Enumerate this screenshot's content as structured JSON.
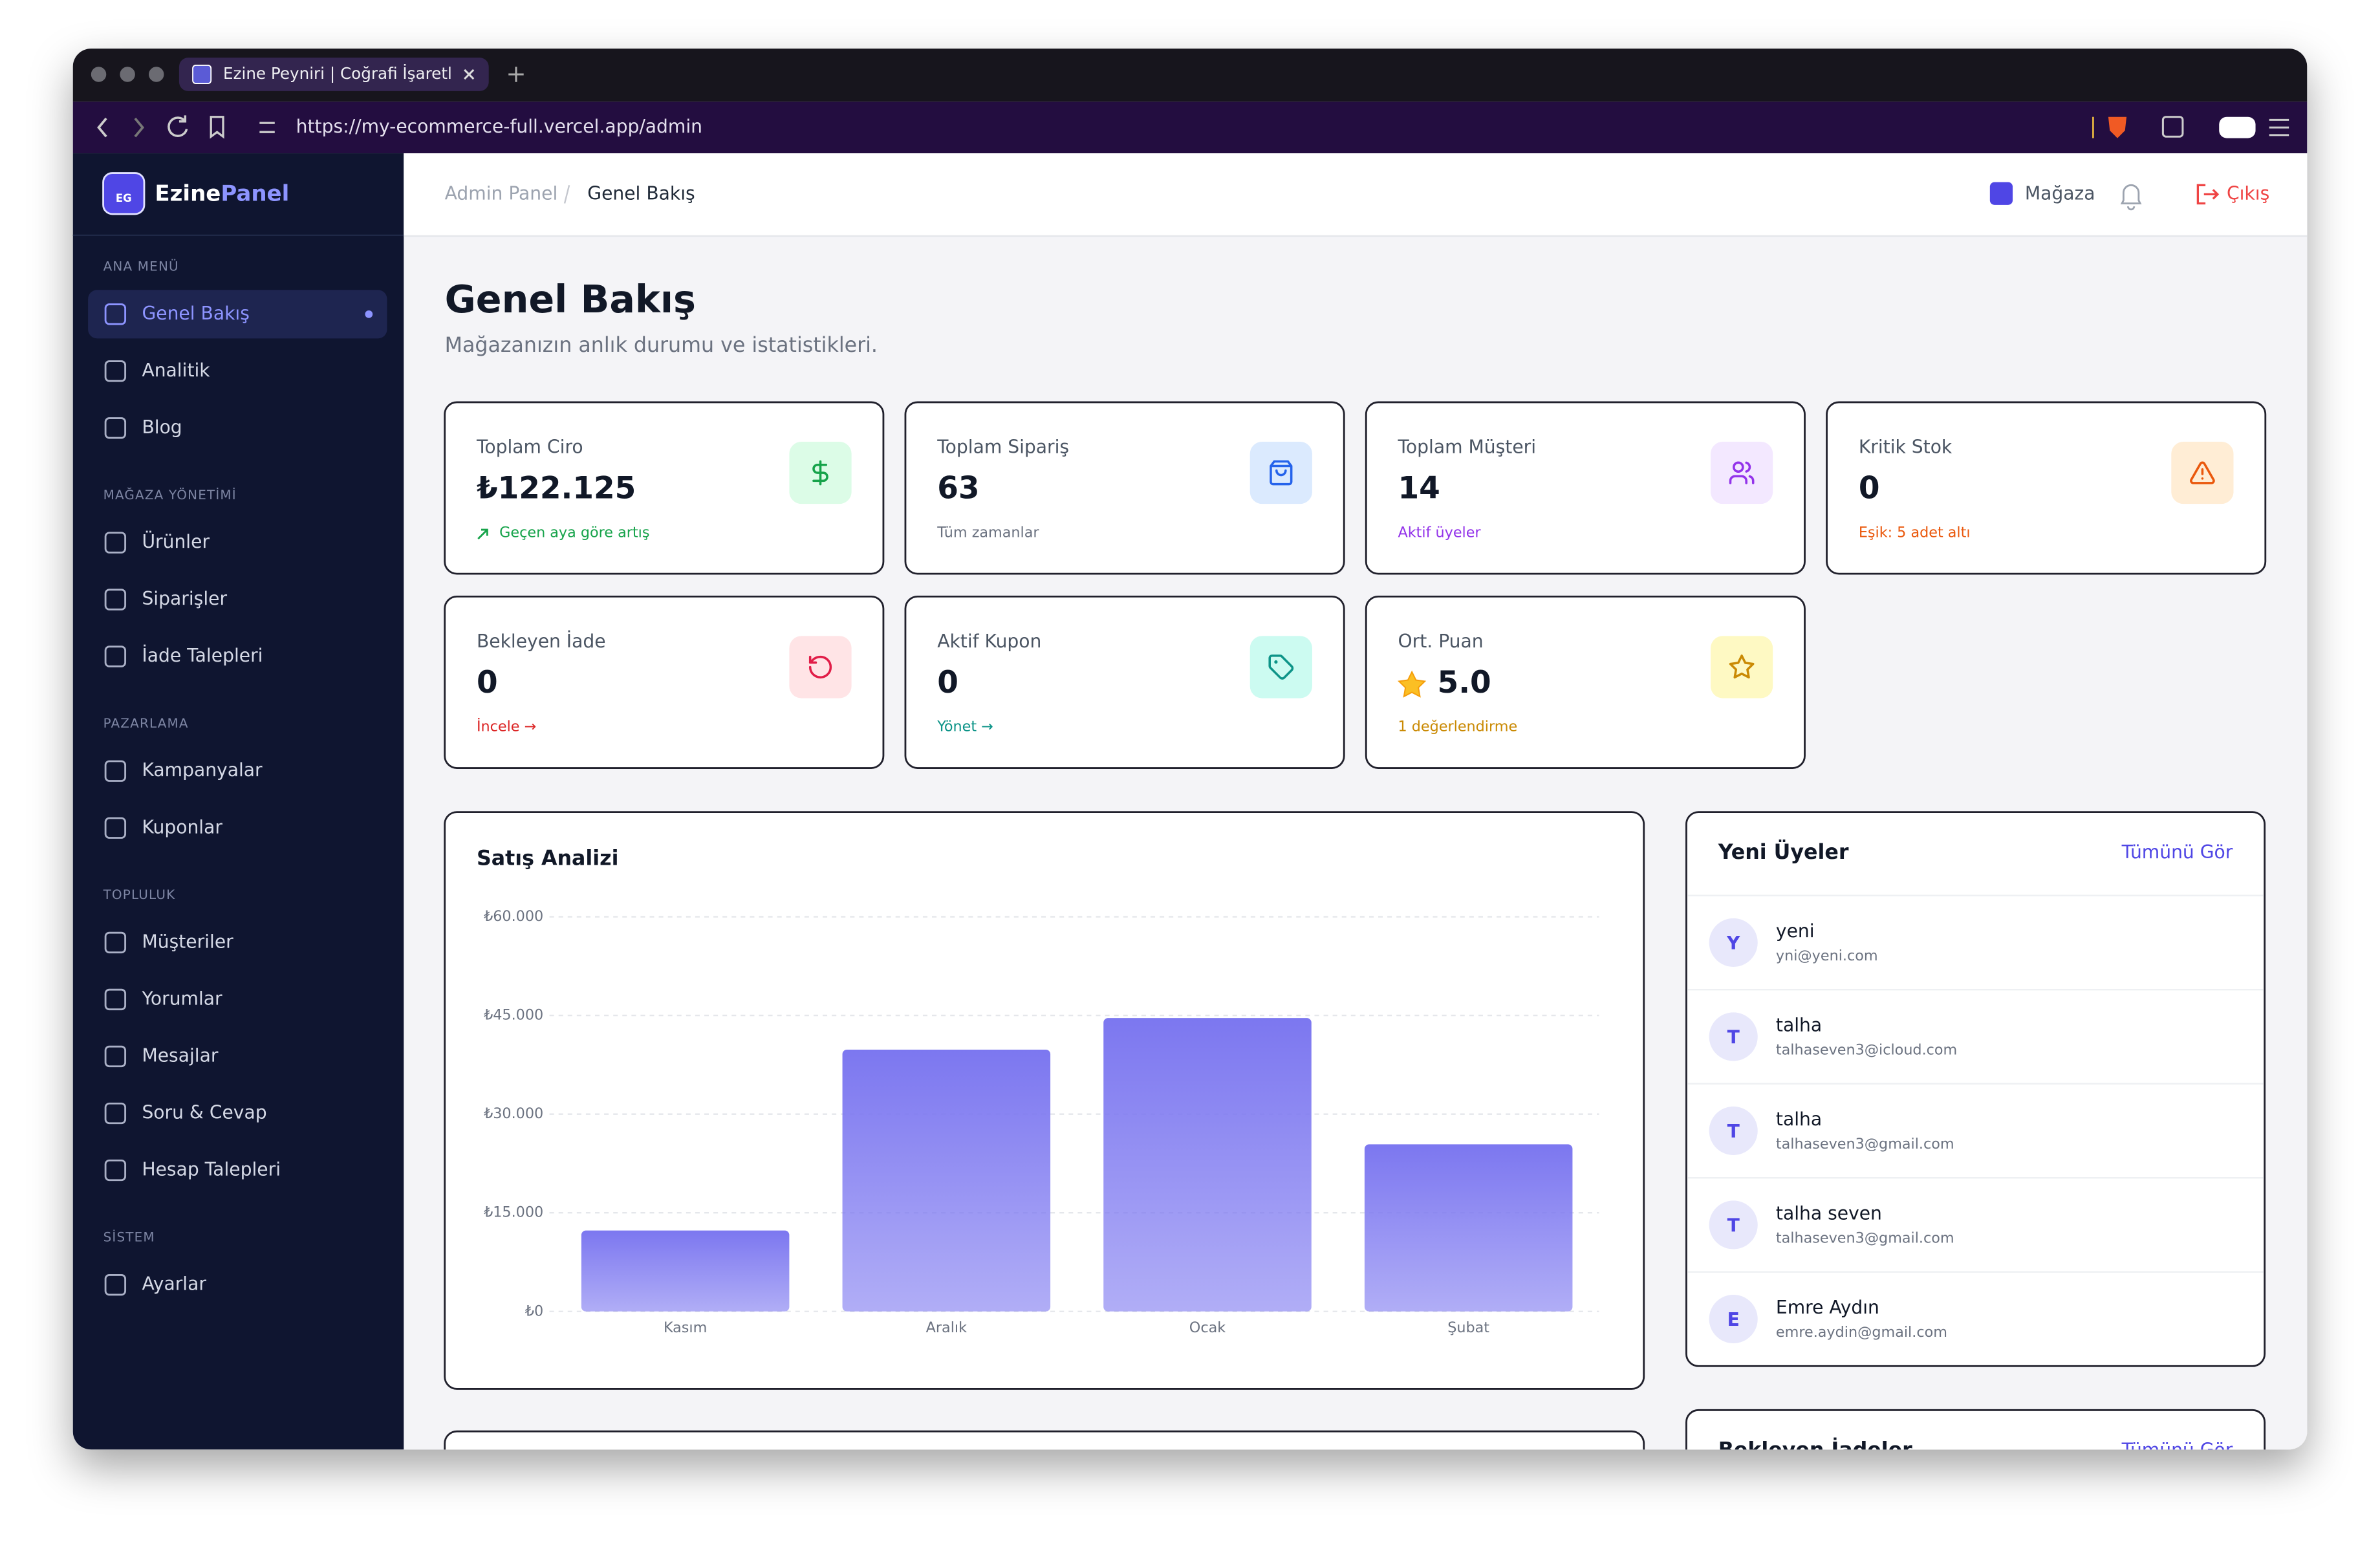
{
  "browser": {
    "tab_title": "Ezine Peyniri | Coğrafi İşaretli",
    "url": "https://my-ecommerce-full.vercel.app/admin"
  },
  "sidebar": {
    "logo": "EG",
    "brand_a": "Ezine",
    "brand_b": "Panel",
    "sections": [
      {
        "title": "ANA MENÜ",
        "items": [
          "Genel Bakış",
          "Analitik",
          "Blog"
        ]
      },
      {
        "title": "MAĞAZA YÖNETİMİ",
        "items": [
          "Ürünler",
          "Siparişler",
          "İade Talepleri"
        ]
      },
      {
        "title": "PAZARLAMA",
        "items": [
          "Kampanyalar",
          "Kuponlar"
        ]
      },
      {
        "title": "TOPLULUK",
        "items": [
          "Müşteriler",
          "Yorumlar",
          "Mesajlar",
          "Soru & Cevap",
          "Hesap Talepleri"
        ]
      },
      {
        "title": "SİSTEM",
        "items": [
          "Ayarlar"
        ]
      }
    ]
  },
  "header": {
    "breadcrumb": [
      "Admin Panel",
      "Genel Bakış"
    ],
    "store": "Mağaza",
    "logout": "Çıkış"
  },
  "page": {
    "title": "Genel Bakış",
    "subtitle": "Mağazanızın anlık durumu ve istatistikleri."
  },
  "stats": [
    {
      "label": "Toplam Ciro",
      "value": "₺122.125",
      "note": "Geçen aya göre artış"
    },
    {
      "label": "Toplam Sipariş",
      "value": "63",
      "note": "Tüm zamanlar"
    },
    {
      "label": "Toplam Müşteri",
      "value": "14",
      "note": "Aktif üyeler"
    },
    {
      "label": "Kritik Stok",
      "value": "0",
      "note": "Eşik: 5 adet altı"
    },
    {
      "label": "Bekleyen İade",
      "value": "0",
      "note": "İncele →"
    },
    {
      "label": "Aktif Kupon",
      "value": "0",
      "note": "Yönet →"
    },
    {
      "label": "Ort. Puan",
      "value": "5.0",
      "note": "1 değerlendirme"
    }
  ],
  "chart_data": {
    "type": "bar",
    "title": "Satış Analizi",
    "categories": [
      "Kasım",
      "Aralık",
      "Ocak",
      "Şubat"
    ],
    "values": [
      12300,
      39800,
      44600,
      25400
    ],
    "color": "#7c77f0",
    "ylim": [
      0,
      60000
    ],
    "yticks": [
      {
        "value": 0,
        "label": "₺0"
      },
      {
        "value": 15000,
        "label": "₺15.000"
      },
      {
        "value": 30000,
        "label": "₺30.000"
      },
      {
        "value": 45000,
        "label": "₺45.000"
      },
      {
        "value": 60000,
        "label": "₺60.000"
      }
    ],
    "grid": true
  },
  "members": {
    "title": "Yeni Üyeler",
    "link": "Tümünü Gör",
    "list": [
      {
        "initial": "Y",
        "name": "yeni",
        "email": "yni@yeni.com"
      },
      {
        "initial": "T",
        "name": "talha",
        "email": "talhaseven3@icloud.com"
      },
      {
        "initial": "T",
        "name": "talha",
        "email": "talhaseven3@gmail.com"
      },
      {
        "initial": "T",
        "name": "talha seven",
        "email": "talhaseven3@gmail.com"
      },
      {
        "initial": "E",
        "name": "Emre Aydın",
        "email": "emre.aydin@gmail.com"
      }
    ]
  },
  "returns": {
    "title": "Bekleyen İadeler",
    "link": "Tümünü Gör"
  }
}
